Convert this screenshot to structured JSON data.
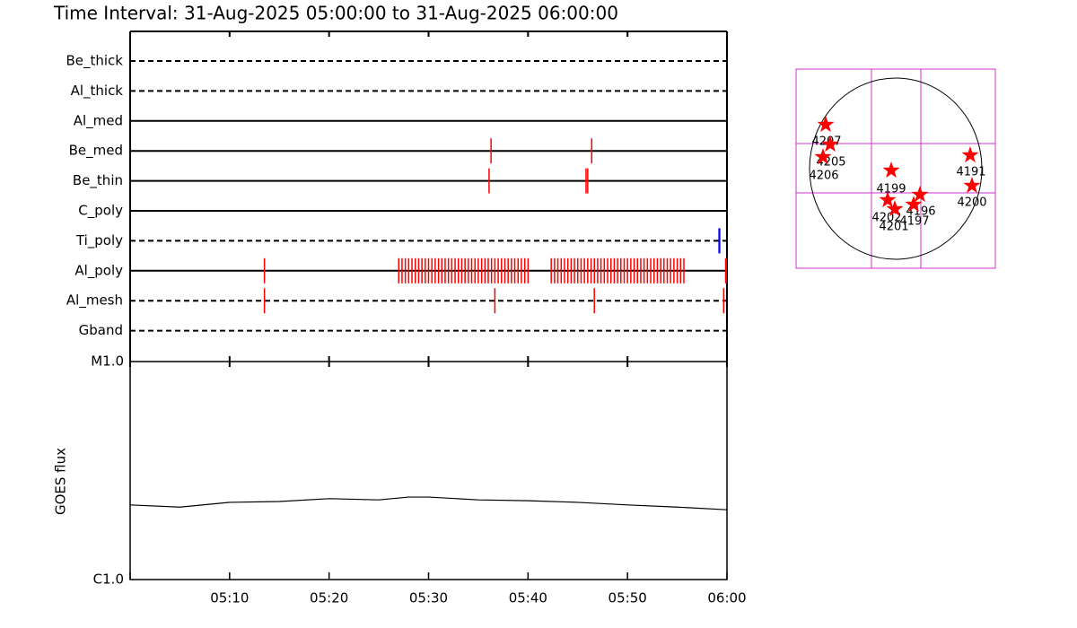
{
  "title": "Time Interval: 31-Aug-2025 05:00:00 to 31-Aug-2025 06:00:00",
  "chart_data": [
    {
      "type": "timeline",
      "xlim": [
        "05:00",
        "06:00"
      ],
      "xticks": [
        "05:00",
        "05:10",
        "05:20",
        "05:30",
        "05:40",
        "05:50",
        "06:00"
      ],
      "rows": [
        {
          "label": "Be_thick",
          "style": "dashed",
          "x": []
        },
        {
          "label": "Al_thick",
          "style": "dashed",
          "x": []
        },
        {
          "label": "Al_med",
          "style": "solid",
          "x": []
        },
        {
          "label": "Be_med",
          "style": "solid",
          "color": "#ff0000",
          "x": [
            "05:36:17",
            "05:46:24"
          ]
        },
        {
          "label": "Be_thin",
          "style": "solid",
          "color": "#ff0000",
          "x": [
            "05:36:05",
            "05:45:50",
            "05:46:00"
          ]
        },
        {
          "label": "C_poly",
          "style": "solid",
          "x": []
        },
        {
          "label": "Ti_poly",
          "style": "dashed",
          "color": "#0000ff",
          "x": [
            "05:59:12",
            "05:59:16"
          ]
        },
        {
          "label": "Al_poly",
          "style": "solid",
          "color": "#ff0000",
          "x": [
            "05:13:30",
            "05:27:00",
            "05:27:20",
            "05:27:40",
            "05:28:00",
            "05:28:20",
            "05:28:40",
            "05:29:00",
            "05:29:20",
            "05:29:40",
            "05:30:00",
            "05:30:20",
            "05:30:40",
            "05:31:00",
            "05:31:20",
            "05:31:40",
            "05:32:00",
            "05:32:20",
            "05:32:40",
            "05:33:00",
            "05:33:20",
            "05:33:40",
            "05:34:00",
            "05:34:20",
            "05:34:40",
            "05:35:00",
            "05:35:20",
            "05:35:40",
            "05:36:00",
            "05:36:20",
            "05:36:40",
            "05:37:00",
            "05:37:20",
            "05:37:40",
            "05:38:00",
            "05:38:20",
            "05:38:40",
            "05:39:00",
            "05:39:20",
            "05:39:40",
            "05:40:00",
            "05:42:20",
            "05:42:40",
            "05:43:00",
            "05:43:20",
            "05:43:40",
            "05:44:00",
            "05:44:20",
            "05:44:40",
            "05:45:00",
            "05:45:20",
            "05:45:40",
            "05:46:00",
            "05:46:20",
            "05:46:40",
            "05:47:00",
            "05:47:20",
            "05:47:40",
            "05:48:00",
            "05:48:20",
            "05:48:40",
            "05:49:00",
            "05:49:20",
            "05:49:40",
            "05:50:00",
            "05:50:20",
            "05:50:40",
            "05:51:00",
            "05:51:20",
            "05:51:40",
            "05:52:00",
            "05:52:20",
            "05:52:40",
            "05:53:00",
            "05:53:20",
            "05:53:40",
            "05:54:00",
            "05:54:20",
            "05:54:40",
            "05:55:00",
            "05:55:20",
            "05:55:40",
            "05:59:52",
            "05:59:56"
          ]
        },
        {
          "label": "Al_mesh",
          "style": "dashed",
          "color": "#ff0000",
          "x": [
            "05:13:30",
            "05:36:40",
            "05:46:40",
            "05:59:40"
          ]
        },
        {
          "label": "Gband",
          "style": "dashed",
          "x": []
        }
      ]
    },
    {
      "type": "line",
      "y_label": "GOES flux",
      "log_scale": true,
      "color": "#000000",
      "xlim": [
        "05:00",
        "06:00"
      ],
      "xticks": [
        "05:00",
        "05:10",
        "05:20",
        "05:30",
        "05:40",
        "05:50",
        "06:00"
      ],
      "ylim": [
        1e-06,
        1e-05
      ],
      "yticks": [
        {
          "value": 1e-06,
          "label": "C1.0"
        },
        {
          "value": 1e-05,
          "label": "M1.0"
        }
      ],
      "x": [
        "05:00",
        "05:05",
        "05:10",
        "05:15",
        "05:20",
        "05:25",
        "05:28",
        "05:30",
        "05:35",
        "05:40",
        "05:45",
        "05:50",
        "05:55",
        "06:00"
      ],
      "values": [
        2.2e-06,
        2.15e-06,
        2.26e-06,
        2.28e-06,
        2.35e-06,
        2.32e-06,
        2.39e-06,
        2.39e-06,
        2.32e-06,
        2.3e-06,
        2.26e-06,
        2.2e-06,
        2.15e-06,
        2.09e-06
      ]
    },
    {
      "type": "map",
      "regions": [
        "4207",
        "4205",
        "4206",
        "4199",
        "4191",
        "4200",
        "4202",
        "4201",
        "4196",
        "4197"
      ]
    }
  ]
}
